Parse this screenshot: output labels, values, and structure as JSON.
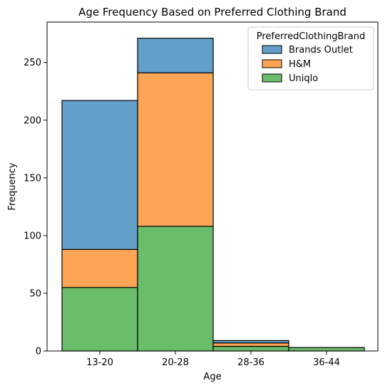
{
  "chart_data": {
    "type": "bar",
    "stacked": true,
    "title": "Age Frequency Based on Preferred Clothing Brand",
    "xlabel": "Age",
    "ylabel": "Frequency",
    "categories": [
      "13-20",
      "20-28",
      "28-36",
      "36-44"
    ],
    "ylim": [
      0,
      285
    ],
    "yticks": [
      0,
      50,
      100,
      150,
      200,
      250
    ],
    "stack_order": [
      "Uniqlo",
      "H&M",
      "Brands Outlet"
    ],
    "series": [
      {
        "name": "Brands Outlet",
        "color": "#62a0ca",
        "values": [
          129,
          30,
          2,
          0
        ]
      },
      {
        "name": "H&M",
        "color": "#ffa555",
        "values": [
          33,
          133,
          3,
          0
        ]
      },
      {
        "name": "Uniqlo",
        "color": "#6abd6a",
        "values": [
          55,
          108,
          4,
          3
        ]
      }
    ],
    "legend": {
      "title": "PreferredClothingBrand",
      "position": "top-right",
      "entries": [
        "Brands Outlet",
        "H&M",
        "Uniqlo"
      ]
    },
    "grid": false
  }
}
